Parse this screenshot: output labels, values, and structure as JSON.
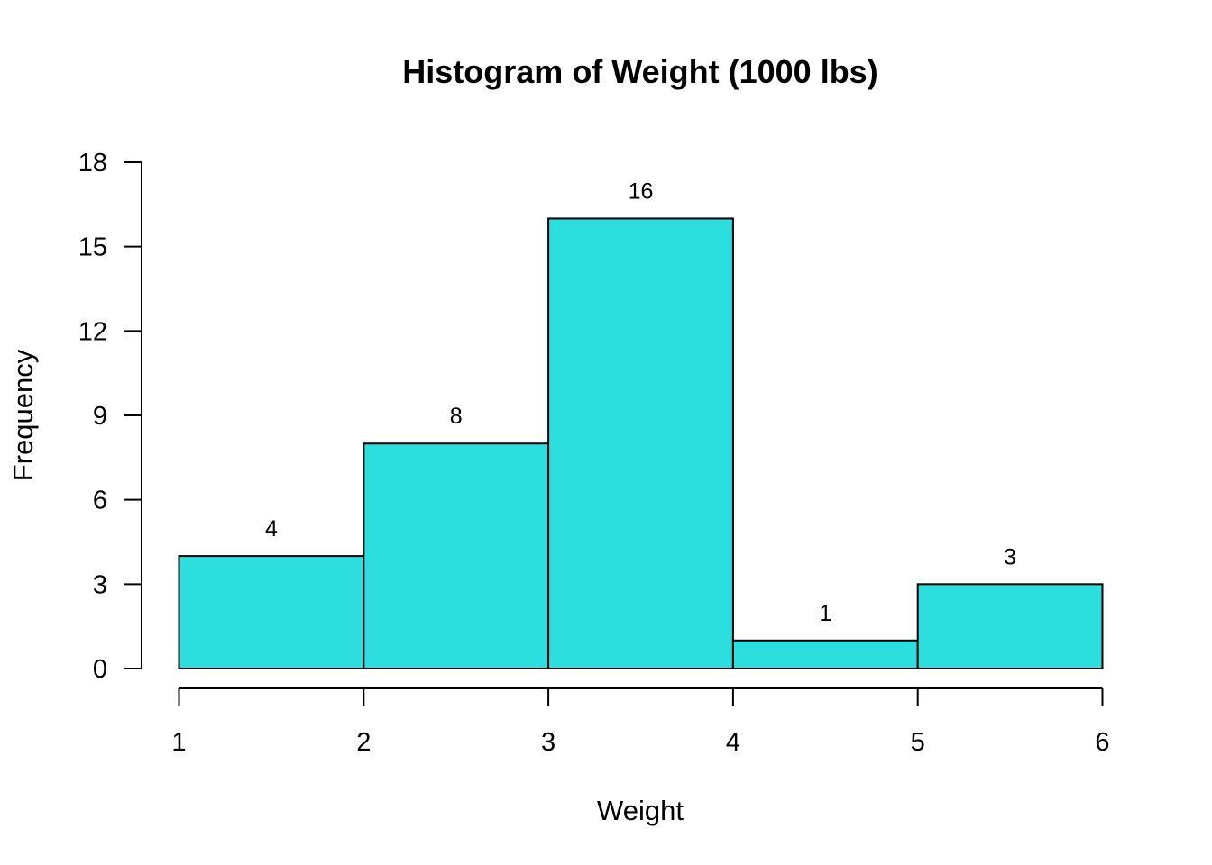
{
  "chart_data": {
    "type": "bar",
    "title": "Histogram of Weight (1000 lbs)",
    "xlabel": "Weight",
    "ylabel": "Frequency",
    "bins": [
      [
        1,
        2
      ],
      [
        2,
        3
      ],
      [
        3,
        4
      ],
      [
        4,
        5
      ],
      [
        5,
        6
      ]
    ],
    "values": [
      4,
      8,
      16,
      1,
      3
    ],
    "data_labels": [
      "4",
      "8",
      "16",
      "1",
      "3"
    ],
    "x_ticks": [
      1,
      2,
      3,
      4,
      5,
      6
    ],
    "y_ticks": [
      0,
      3,
      6,
      9,
      12,
      15,
      18
    ],
    "xlim": [
      1,
      6
    ],
    "ylim": [
      0,
      18
    ],
    "grid": false,
    "bar_color": "#2cdede",
    "edge_color": "#000000"
  }
}
